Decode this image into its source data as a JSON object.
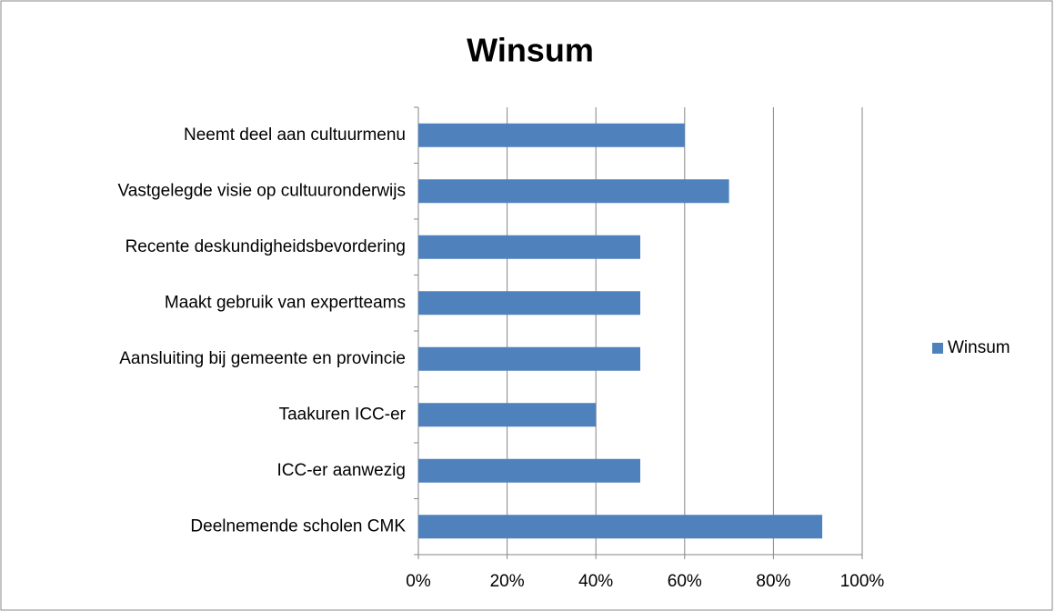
{
  "chart_data": {
    "type": "bar",
    "orientation": "horizontal",
    "title": "Winsum",
    "categories": [
      "Neemt deel aan cultuurmenu",
      "Vastgelegde visie op cultuuronderwijs",
      "Recente deskundigheidsbevordering",
      "Maakt gebruik van expertteams",
      "Aansluiting bij gemeente en provincie",
      "Taakuren ICC-er",
      "ICC-er aanwezig",
      "Deelnemende scholen CMK"
    ],
    "series": [
      {
        "name": "Winsum",
        "color": "#4f81bd",
        "values": [
          60,
          70,
          50,
          50,
          50,
          40,
          50,
          91
        ]
      }
    ],
    "xlim": [
      0,
      100
    ],
    "xticks": [
      {
        "value": 0,
        "label": "0%"
      },
      {
        "value": 20,
        "label": "20%"
      },
      {
        "value": 40,
        "label": "40%"
      },
      {
        "value": 60,
        "label": "60%"
      },
      {
        "value": 80,
        "label": "80%"
      },
      {
        "value": 100,
        "label": "100%"
      }
    ],
    "grid": true,
    "legend": "right"
  }
}
